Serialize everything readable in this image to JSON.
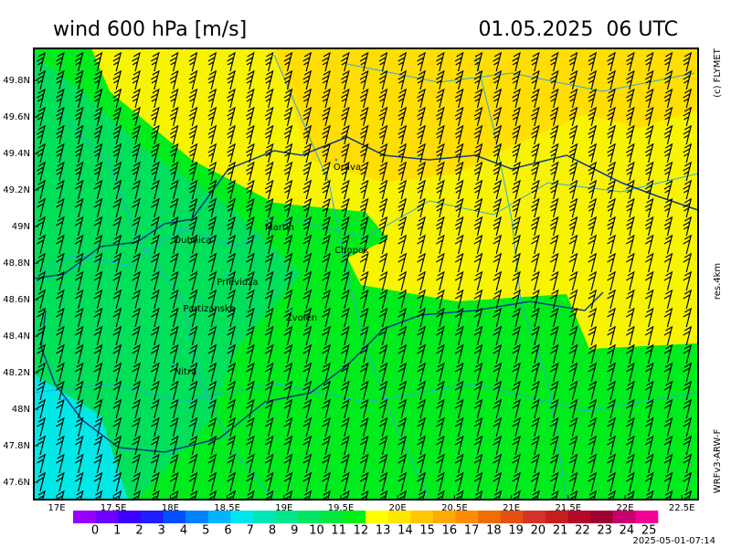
{
  "header": {
    "title": "wind 600 hPa [m/s]",
    "valid_time": "01.05.2025  06 UTC"
  },
  "side_labels": [
    "(c) FLYMET",
    "res.4km",
    "WRFv3-ARW-F"
  ],
  "map": {
    "lat_labels": [
      "49.8N",
      "49.6N",
      "49.4N",
      "49.2N",
      "49N",
      "48.8N",
      "48.6N",
      "48.4N",
      "48.2N",
      "48N",
      "47.8N",
      "47.6N"
    ],
    "lon_labels": [
      "17E",
      "17.5E",
      "18E",
      "18.5E",
      "19E",
      "19.5E",
      "20E",
      "20.5E",
      "21E",
      "21.5E",
      "22E",
      "22.5E"
    ],
    "places": [
      "Orava",
      "Martin",
      "Dubnica",
      "Chopok",
      "Prievidza",
      "Partizanske",
      "Zvolen",
      "Nitra"
    ]
  },
  "colorbar": {
    "levels": [
      "0",
      "1",
      "2",
      "3",
      "4",
      "5",
      "6",
      "7",
      "8",
      "9",
      "10",
      "11",
      "12",
      "13",
      "14",
      "15",
      "16",
      "17",
      "18",
      "19",
      "20",
      "21",
      "22",
      "23",
      "24",
      "25"
    ],
    "colors": [
      "#9600fe",
      "#6e00fe",
      "#3c00fe",
      "#1e1efe",
      "#0050fe",
      "#0082fe",
      "#00b4fe",
      "#00e6f0",
      "#00e6b4",
      "#00e68c",
      "#00e664",
      "#00e63c",
      "#00f014",
      "#ffff00",
      "#ffe600",
      "#ffc800",
      "#ffaa00",
      "#ff8c00",
      "#f06e00",
      "#e65014",
      "#d73228",
      "#c81e1e",
      "#b40a28",
      "#a00032",
      "#c8006e",
      "#f00096"
    ]
  },
  "footer": {
    "timestamp": "2025-05-01-07:14"
  }
}
